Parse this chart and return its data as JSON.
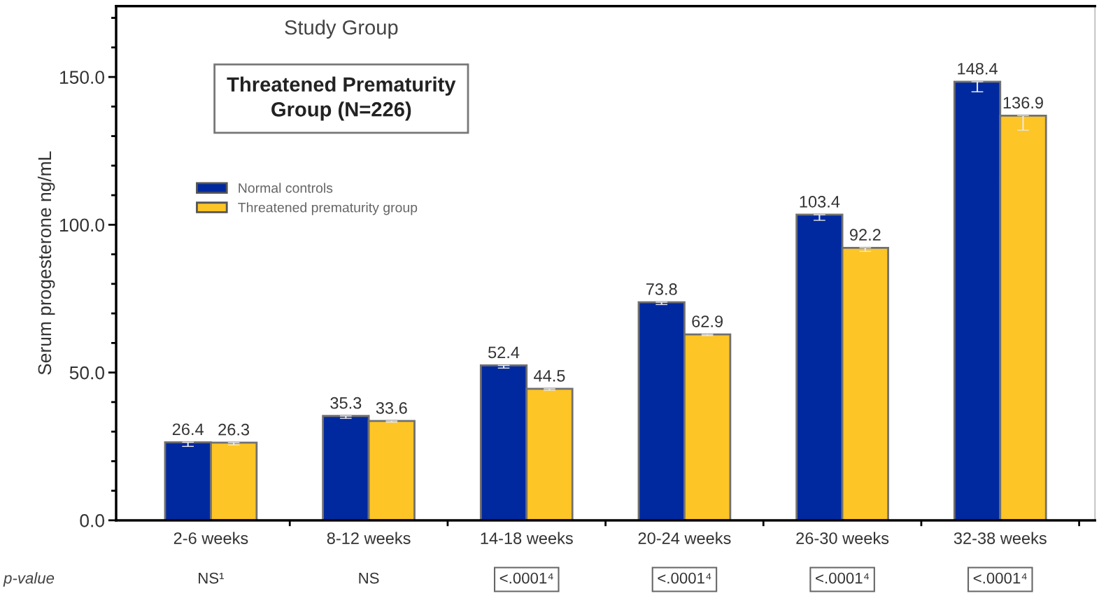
{
  "chart_data": {
    "type": "bar",
    "ylabel": "Serum progesterone ng/mL",
    "legend_title": "Study Group",
    "legend": "top left",
    "data_labels": true,
    "grid": false,
    "categories": [
      "2-6 weeks",
      "8-12 weeks",
      "14-18 weeks",
      "20-24 weeks",
      "26-30 weeks",
      "32-38 weeks"
    ],
    "ylim": [
      0,
      174
    ],
    "yticks": [
      {
        "value": 0,
        "label": "0.0"
      },
      {
        "value": 50,
        "label": "50.0"
      },
      {
        "value": 100,
        "label": "100.0"
      },
      {
        "value": 150,
        "label": "150.0"
      }
    ],
    "series": [
      {
        "name": "Normal controls",
        "color": "#0029a0",
        "values": [
          26.4,
          35.3,
          52.4,
          73.8,
          103.4,
          148.4
        ],
        "errors": [
          [
            25.0,
            26.4
          ],
          [
            34.5,
            35.3
          ],
          [
            51.5,
            52.4
          ],
          [
            73.0,
            73.8
          ],
          [
            101.5,
            103.4
          ],
          [
            145.0,
            148.4
          ]
        ]
      },
      {
        "name": "Threatened prematurity group",
        "color": "#fdc526",
        "values": [
          26.3,
          33.6,
          44.5,
          62.9,
          92.2,
          136.9
        ],
        "errors": [
          [
            25.5,
            26.3
          ],
          [
            33.2,
            33.6
          ],
          [
            44.0,
            44.5
          ],
          [
            62.5,
            62.9
          ],
          [
            91.0,
            92.2
          ],
          [
            132.0,
            136.9
          ]
        ]
      }
    ],
    "annotations": [
      "Threatened Prematurity Group (N=226)",
      "p-value",
      "NS¹",
      "NS",
      "<.0001⁴",
      "<.0001⁴",
      "<.0001⁴",
      "<.0001⁴"
    ]
  }
}
